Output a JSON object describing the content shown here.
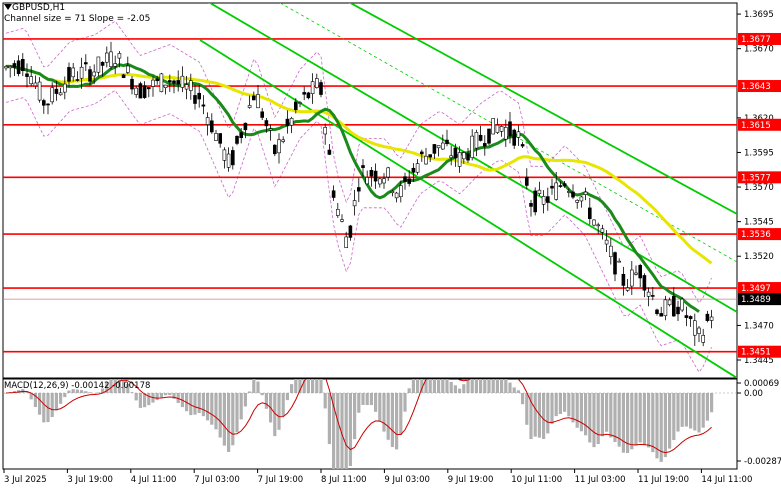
{
  "header": {
    "symbol": "GBPUSD,H1",
    "indicator": "Channel size = 71 Slope = -2.05"
  },
  "macd": {
    "label": "MACD(12,26,9) -0.00142 -0.00178",
    "scale": [
      "0.00069",
      "0.00",
      "-0.00287"
    ]
  },
  "price_axis": {
    "ticks": [
      "1.3695",
      "1.3670",
      "1.3620",
      "1.3595",
      "1.3570",
      "1.3545",
      "1.3520",
      "1.3470",
      "1.3445"
    ]
  },
  "levels": [
    {
      "price": 1.3677,
      "label": "1.3677"
    },
    {
      "price": 1.3643,
      "label": "1.3643"
    },
    {
      "price": 1.3615,
      "label": "1.3615"
    },
    {
      "price": 1.3577,
      "label": "1.3577"
    },
    {
      "price": 1.3536,
      "label": "1.3536"
    },
    {
      "price": 1.3497,
      "label": "1.3497"
    },
    {
      "price": 1.3451,
      "label": "1.3451"
    }
  ],
  "current_price": {
    "price": 1.3489,
    "label": "1.3489"
  },
  "time_axis": [
    "3 Jul 2025",
    "3 Jul 19:00",
    "4 Jul 11:00",
    "7 Jul 03:00",
    "7 Jul 19:00",
    "8 Jul 11:00",
    "9 Jul 03:00",
    "9 Jul 19:00",
    "10 Jul 11:00",
    "11 Jul 03:00",
    "11 Jul 19:00",
    "14 Jul 11:00"
  ],
  "colors": {
    "level": "#ff0000",
    "level_label_bg": "#ff0000",
    "current_label_bg": "#000000",
    "channel": "#00cc00",
    "ma_fast": "#1a8a1a",
    "ma_slow": "#e6e600",
    "envelope": "#cc66cc",
    "macd_hist": "#b0b0b0",
    "macd_signal": "#cc0000"
  }
}
